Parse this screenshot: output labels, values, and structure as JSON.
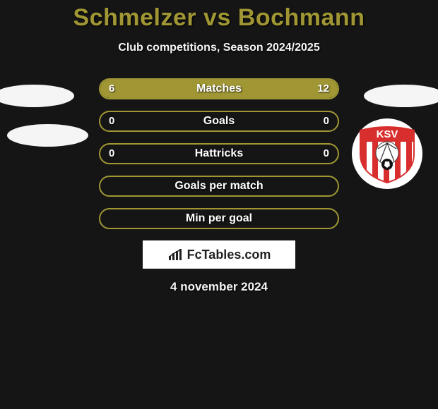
{
  "title": "Schmelzer vs Bochmann",
  "subtitle": "Club competitions, Season 2024/2025",
  "date": "4 november 2024",
  "brand": "FcTables.com",
  "colors": {
    "accent": "#a09734",
    "bg": "#151515",
    "text": "#f5f5f5",
    "badge_stripe": "#d82e2e"
  },
  "badge": {
    "text": "KSV"
  },
  "bars": [
    {
      "label": "Matches",
      "left": "6",
      "right": "12",
      "left_pct": 33,
      "right_pct": 67
    },
    {
      "label": "Goals",
      "left": "0",
      "right": "0",
      "left_pct": 0,
      "right_pct": 0
    },
    {
      "label": "Hattricks",
      "left": "0",
      "right": "0",
      "left_pct": 0,
      "right_pct": 0
    },
    {
      "label": "Goals per match",
      "left": "",
      "right": "",
      "left_pct": 0,
      "right_pct": 0
    },
    {
      "label": "Min per goal",
      "left": "",
      "right": "",
      "left_pct": 0,
      "right_pct": 0
    }
  ]
}
